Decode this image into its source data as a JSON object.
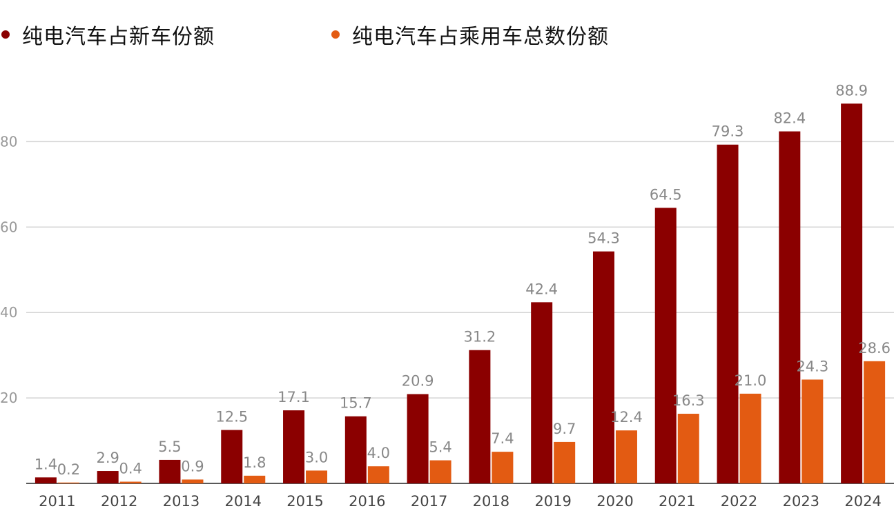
{
  "chart_data": {
    "type": "bar",
    "categories": [
      "2011",
      "2012",
      "2013",
      "2014",
      "2015",
      "2016",
      "2017",
      "2018",
      "2019",
      "2020",
      "2021",
      "2022",
      "2023",
      "2024"
    ],
    "series": [
      {
        "name": "纯电汽车占新车份额",
        "color": "#8b0000",
        "values": [
          1.4,
          2.9,
          5.5,
          12.5,
          17.1,
          15.7,
          20.9,
          31.2,
          42.4,
          54.3,
          64.5,
          79.3,
          82.4,
          88.9
        ],
        "labels": [
          "1.4",
          "2.9",
          "5.5",
          "12.5",
          "17.1",
          "15.7",
          "20.9",
          "31.2",
          "42.4",
          "54.3",
          "64.5",
          "79.3",
          "82.4",
          "88.9"
        ]
      },
      {
        "name": "纯电汽车占乘用车总数份额",
        "color": "#e35b12",
        "values": [
          0.2,
          0.4,
          0.9,
          1.8,
          3.0,
          4.0,
          5.4,
          7.4,
          9.7,
          12.4,
          16.3,
          21.0,
          24.3,
          28.6
        ],
        "labels": [
          "0.2",
          "0.4",
          "0.9",
          "1.8",
          "3.0",
          "4.0",
          "5.4",
          "7.4",
          "9.7",
          "12.4",
          "16.3",
          "21.0",
          "24.3",
          "28.6"
        ]
      }
    ],
    "yticks": [
      20,
      40,
      60,
      80
    ],
    "ytick_labels": [
      "20",
      "40",
      "60",
      "80"
    ],
    "ylim": [
      0,
      95
    ],
    "grid": true,
    "legend_position": "top"
  }
}
